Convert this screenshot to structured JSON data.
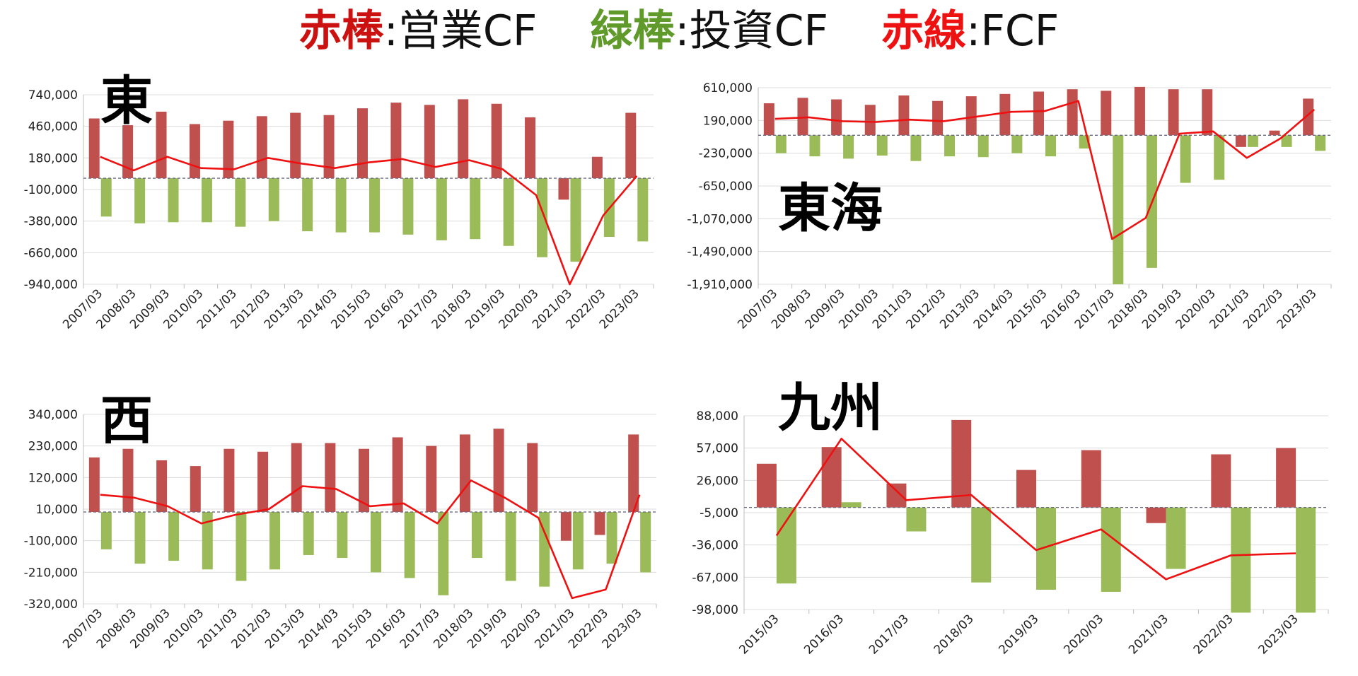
{
  "legend": {
    "op_label": "赤棒",
    "op_rest": ":営業CF",
    "inv_label": "緑棒",
    "inv_rest": ":投資CF",
    "fcf_label": "赤線",
    "fcf_rest": ":FCF"
  },
  "colors": {
    "operating": "#c0504d",
    "investing": "#9bbb59",
    "fcf": "#ee1111",
    "zero_line": "#6a6a80",
    "grid": "#dcdcdc"
  },
  "chart_data": [
    {
      "type": "bar",
      "title": "東",
      "categories": [
        "2007/03",
        "2008/03",
        "2009/03",
        "2010/03",
        "2011/03",
        "2012/03",
        "2013/03",
        "2014/03",
        "2015/03",
        "2016/03",
        "2017/03",
        "2018/03",
        "2019/03",
        "2020/03",
        "2021/03",
        "2022/03",
        "2023/03"
      ],
      "yticks": [
        "740,000",
        "460,000",
        "180,000",
        "-100,000",
        "-380,000",
        "-660,000",
        "-940,000"
      ],
      "ylim": [
        -940000,
        740000
      ],
      "series": [
        {
          "role": "operating",
          "type": "bar",
          "values": [
            530000,
            470000,
            590000,
            480000,
            510000,
            550000,
            580000,
            560000,
            620000,
            670000,
            650000,
            700000,
            660000,
            540000,
            -190000,
            190000,
            580000
          ]
        },
        {
          "role": "investing",
          "type": "bar",
          "values": [
            -340000,
            -400000,
            -390000,
            -390000,
            -430000,
            -380000,
            -470000,
            -480000,
            -480000,
            -500000,
            -550000,
            -540000,
            -600000,
            -700000,
            -740000,
            -520000,
            -560000
          ]
        },
        {
          "role": "fcf",
          "type": "line",
          "values": [
            190000,
            70000,
            190000,
            90000,
            80000,
            180000,
            130000,
            90000,
            140000,
            170000,
            100000,
            160000,
            80000,
            -150000,
            -940000,
            -330000,
            20000
          ]
        }
      ]
    },
    {
      "type": "bar",
      "title": "東海",
      "categories": [
        "2007/03",
        "2008/03",
        "2009/03",
        "2010/03",
        "2011/03",
        "2012/03",
        "2013/03",
        "2014/03",
        "2015/03",
        "2016/03",
        "2017/03",
        "2018/03",
        "2019/03",
        "2020/03",
        "2021/03",
        "2022/03",
        "2023/03"
      ],
      "yticks": [
        "610,000",
        "190,000",
        "-230,000",
        "-650,000",
        "-1,070,000",
        "-1,490,000",
        "-1,910,000"
      ],
      "ylim": [
        -1910000,
        610000
      ],
      "series": [
        {
          "role": "operating",
          "type": "bar",
          "values": [
            410000,
            480000,
            460000,
            390000,
            510000,
            440000,
            500000,
            530000,
            560000,
            590000,
            570000,
            620000,
            590000,
            590000,
            -150000,
            60000,
            470000
          ]
        },
        {
          "role": "investing",
          "type": "bar",
          "values": [
            -230000,
            -270000,
            -300000,
            -260000,
            -330000,
            -270000,
            -280000,
            -230000,
            -270000,
            -170000,
            -1910000,
            -1700000,
            -610000,
            -570000,
            -150000,
            -150000,
            -200000
          ]
        },
        {
          "role": "fcf",
          "type": "line",
          "values": [
            210000,
            230000,
            180000,
            170000,
            200000,
            180000,
            240000,
            300000,
            310000,
            440000,
            -1330000,
            -1060000,
            20000,
            50000,
            -290000,
            -40000,
            330000
          ]
        }
      ]
    },
    {
      "type": "bar",
      "title": "西",
      "categories": [
        "2007/03",
        "2008/03",
        "2009/03",
        "2010/03",
        "2011/03",
        "2012/03",
        "2013/03",
        "2014/03",
        "2015/03",
        "2016/03",
        "2017/03",
        "2018/03",
        "2019/03",
        "2020/03",
        "2021/03",
        "2022/03",
        "2023/03"
      ],
      "yticks": [
        "340,000",
        "230,000",
        "120,000",
        "10,000",
        "-100,000",
        "-210,000",
        "-320,000"
      ],
      "ylim": [
        -320000,
        340000
      ],
      "series": [
        {
          "role": "operating",
          "type": "bar",
          "values": [
            190000,
            220000,
            180000,
            160000,
            220000,
            210000,
            240000,
            240000,
            220000,
            260000,
            230000,
            270000,
            290000,
            240000,
            -100000,
            -80000,
            270000
          ]
        },
        {
          "role": "investing",
          "type": "bar",
          "values": [
            -130000,
            -180000,
            -170000,
            -200000,
            -240000,
            -200000,
            -150000,
            -160000,
            -210000,
            -230000,
            -290000,
            -160000,
            -240000,
            -260000,
            -200000,
            -180000,
            -210000
          ]
        },
        {
          "role": "fcf",
          "type": "line",
          "values": [
            60000,
            50000,
            20000,
            -40000,
            -10000,
            10000,
            90000,
            80000,
            20000,
            30000,
            -40000,
            110000,
            50000,
            -20000,
            -300000,
            -270000,
            60000
          ]
        }
      ]
    },
    {
      "type": "bar",
      "title": "九州",
      "categories": [
        "2015/03",
        "2016/03",
        "2017/03",
        "2018/03",
        "2019/03",
        "2020/03",
        "2021/03",
        "2022/03",
        "2023/03"
      ],
      "yticks": [
        "88,000",
        "57,000",
        "26,000",
        "-5,000",
        "-36,000",
        "-67,000",
        "-98,000"
      ],
      "ylim": [
        -98000,
        88000
      ],
      "series": [
        {
          "role": "operating",
          "type": "bar",
          "values": [
            42000,
            58000,
            23000,
            84000,
            36000,
            55000,
            -15000,
            51000,
            57000
          ]
        },
        {
          "role": "investing",
          "type": "bar",
          "values": [
            -73000,
            5000,
            -23000,
            -72000,
            -79000,
            -81000,
            -59000,
            -101000,
            -101000
          ]
        },
        {
          "role": "fcf",
          "type": "line",
          "values": [
            -27000,
            66000,
            7000,
            12000,
            -41000,
            -21000,
            -69000,
            -46000,
            -44000
          ]
        }
      ]
    }
  ]
}
